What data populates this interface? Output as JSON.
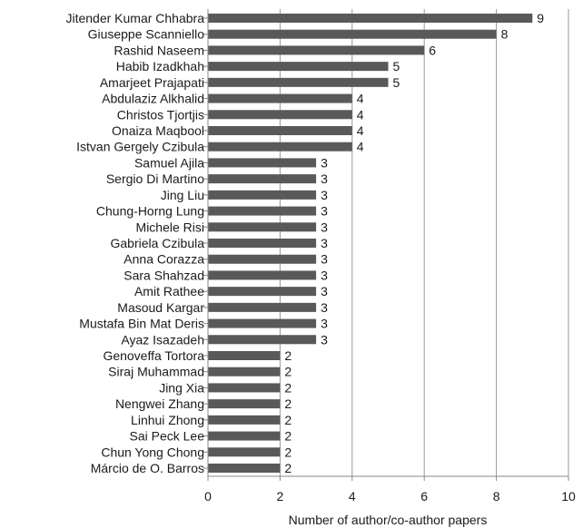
{
  "chart_data": {
    "type": "bar",
    "orientation": "horizontal",
    "categories": [
      "Jitender Kumar Chhabra",
      "Giuseppe Scanniello",
      "Rashid Naseem",
      "Habib Izadkhah",
      "Amarjeet Prajapati",
      "Abdulaziz Alkhalid",
      "Christos Tjortjis",
      "Onaiza Maqbool",
      "Istvan Gergely Czibula",
      "Samuel Ajila",
      "Sergio Di Martino",
      "Jing Liu",
      "Chung-Horng Lung",
      "Michele Risi",
      "Gabriela Czibula",
      "Anna Corazza",
      "Sara Shahzad",
      "Amit Rathee",
      "Masoud Kargar",
      "Mustafa Bin Mat Deris",
      "Ayaz Isazadeh",
      "Genoveffa Tortora",
      "Siraj Muhammad",
      "Jing Xia",
      "Nengwei  Zhang",
      "Linhui  Zhong",
      "Sai Peck Lee",
      "Chun Yong Chong",
      "Márcio de O. Barros"
    ],
    "values": [
      9,
      8,
      6,
      5,
      5,
      4,
      4,
      4,
      4,
      3,
      3,
      3,
      3,
      3,
      3,
      3,
      3,
      3,
      3,
      3,
      3,
      2,
      2,
      2,
      2,
      2,
      2,
      2,
      2
    ],
    "title": "",
    "xlabel": "Number of author/co-author papers",
    "ylabel": "",
    "xlim": [
      0,
      10
    ],
    "xticks": [
      0,
      2,
      4,
      6,
      8,
      10
    ],
    "grid": "vertical",
    "legend": "none",
    "bar_color": "#595959",
    "grid_color": "#999999",
    "axis_color": "#888888",
    "text_color": "#1a1a1a"
  }
}
